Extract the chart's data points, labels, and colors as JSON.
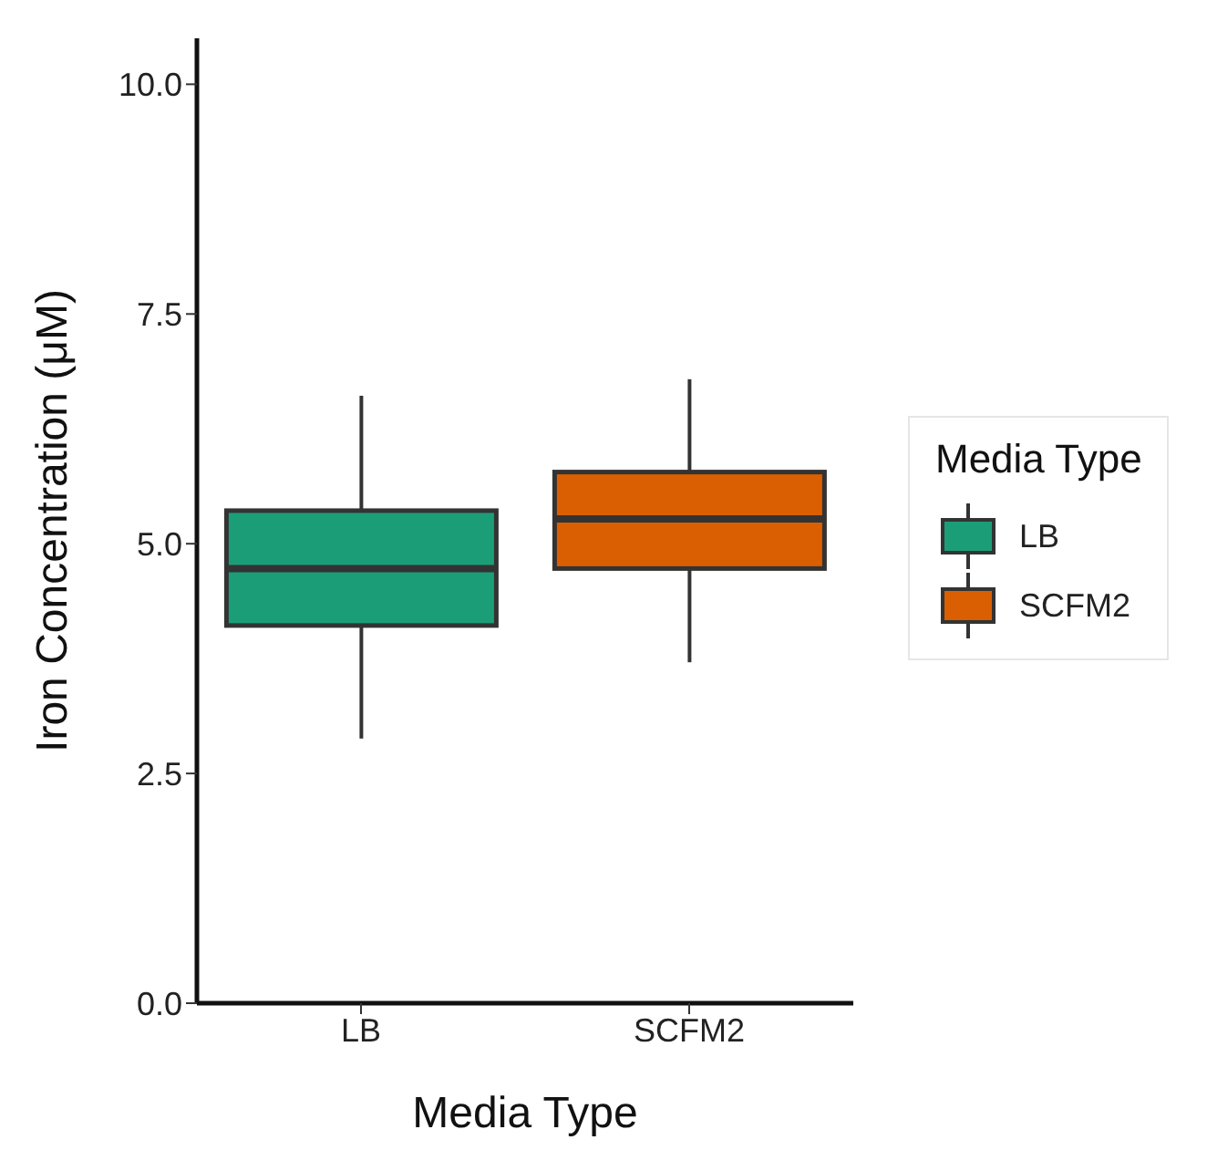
{
  "chart_data": {
    "type": "box",
    "xlabel": "Media Type",
    "ylabel": "Iron Concentration (μM)",
    "legend_title": "Media Type",
    "categories": [
      "LB",
      "SCFM2"
    ],
    "series": [
      {
        "name": "LB",
        "color": "#1b9e77",
        "boxes": [
          {
            "low": 2.88,
            "q1": 4.11,
            "median": 4.73,
            "q3": 5.36,
            "high": 6.61
          },
          null
        ]
      },
      {
        "name": "SCFM2",
        "color": "#d95f02",
        "boxes": [
          null,
          {
            "low": 3.71,
            "q1": 4.73,
            "median": 5.27,
            "q3": 5.78,
            "high": 6.79
          }
        ]
      }
    ],
    "ylim": [
      0,
      10.5
    ],
    "yticks": [
      {
        "value": 0,
        "label": "0.0"
      },
      {
        "value": 2.5,
        "label": "2.5"
      },
      {
        "value": 5,
        "label": "5.0"
      },
      {
        "value": 7.5,
        "label": "7.5"
      },
      {
        "value": 10,
        "label": "10.0"
      }
    ],
    "grid": false,
    "legend": "right"
  }
}
